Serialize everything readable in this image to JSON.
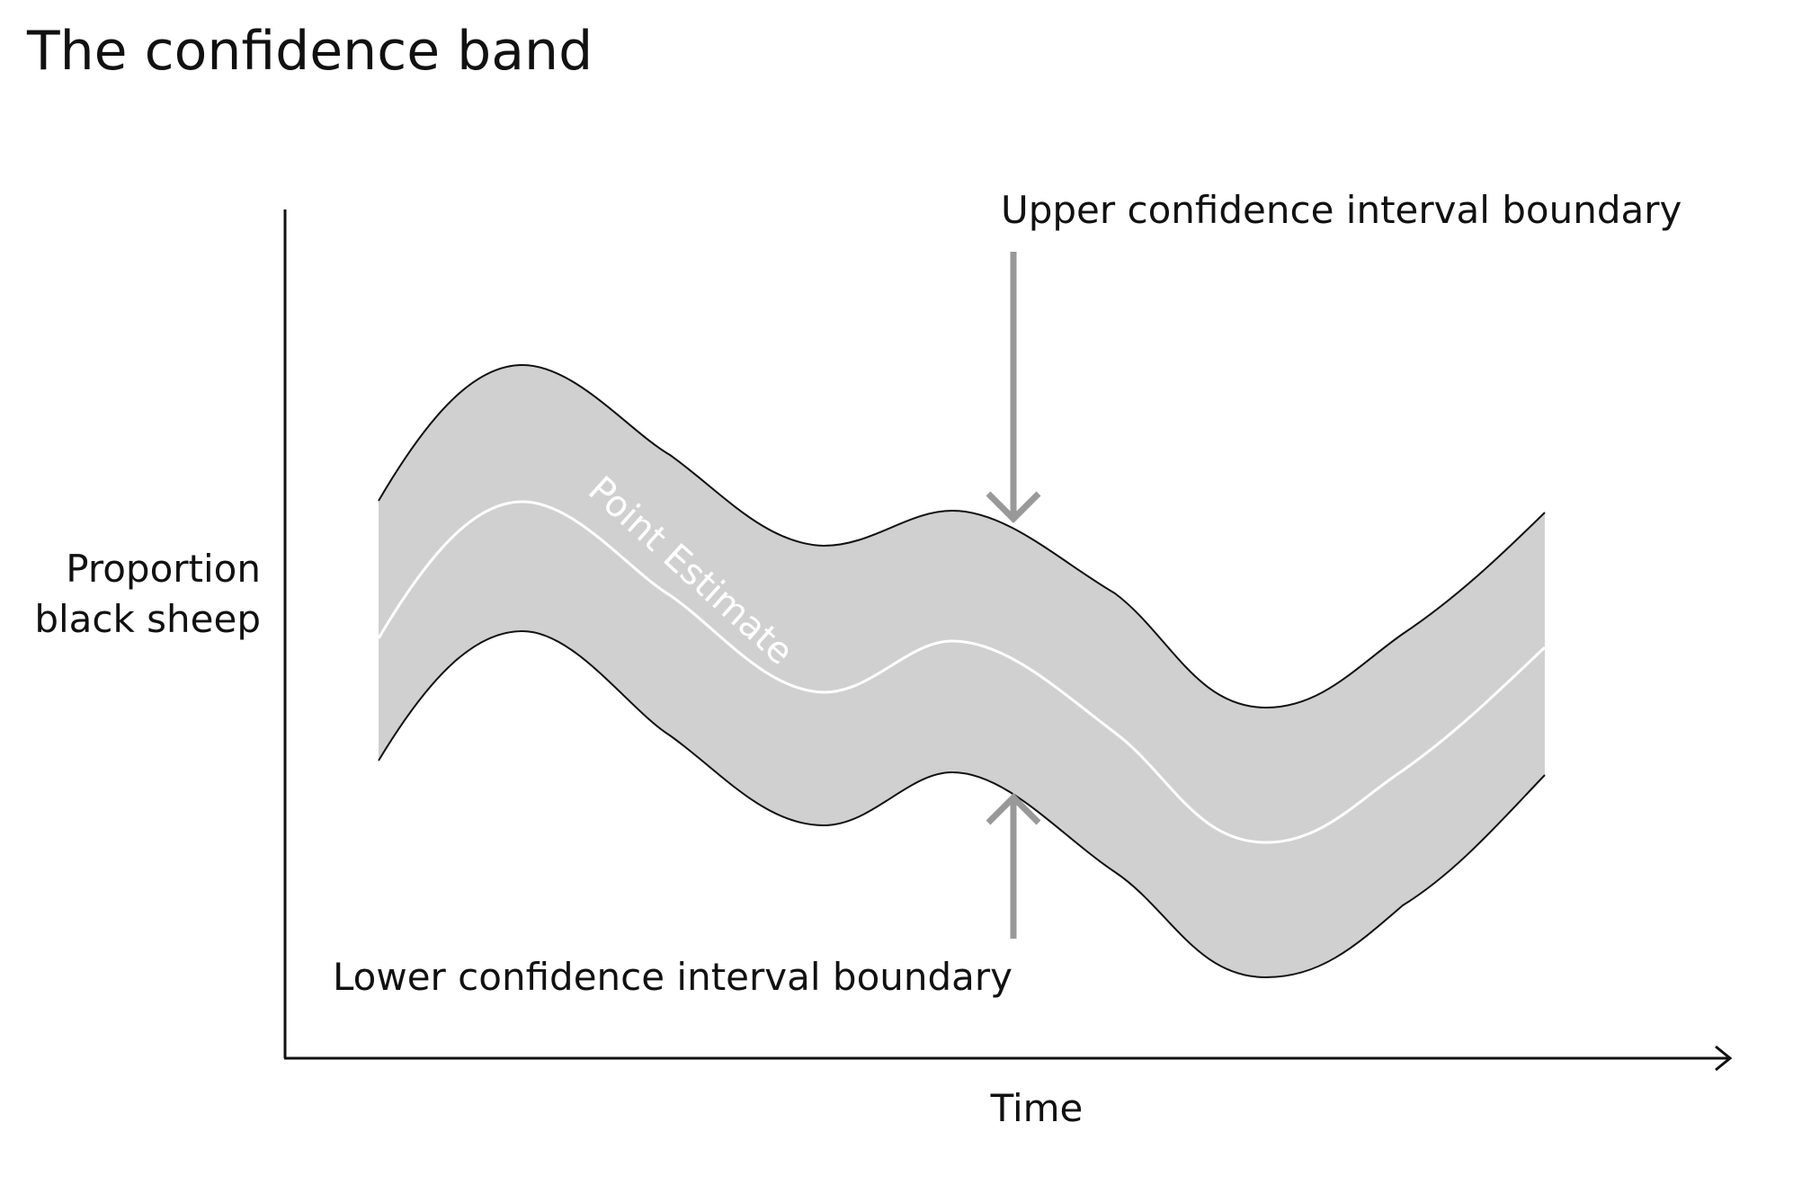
{
  "title": "The confidence band",
  "axes": {
    "y_label_line1": "Proportion",
    "y_label_line2": "black sheep",
    "x_label": "Time"
  },
  "annotations": {
    "upper": "Upper confidence interval boundary",
    "lower": "Lower confidence interval boundary",
    "point_estimate": "Point Estimate"
  },
  "colors": {
    "band_fill": "#d0d0d0",
    "boundary_stroke": "#111111",
    "estimate_stroke": "#ffffff",
    "arrow": "#999999",
    "axis": "#111111"
  }
}
